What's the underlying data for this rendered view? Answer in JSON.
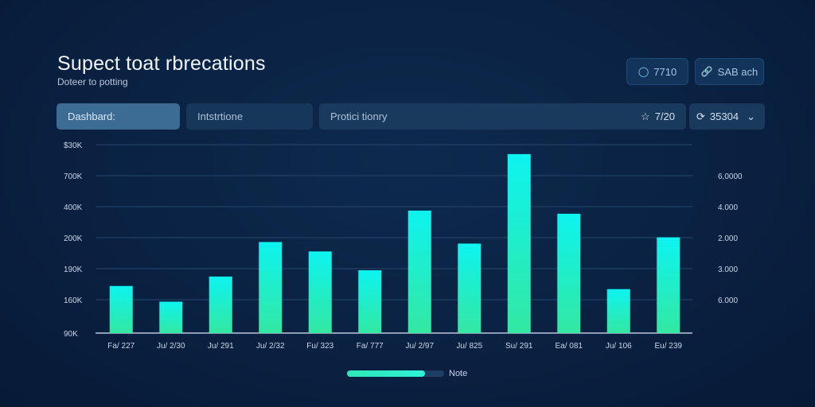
{
  "header": {
    "title": "Supect toat rbrecations",
    "subtitle": "Doteer to potting"
  },
  "top_buttons": [
    {
      "label": "7710",
      "icon": "chat-bubble-icon"
    },
    {
      "label": "SAB ach",
      "icon": "link-icon"
    }
  ],
  "tabs": [
    {
      "label": "Dashbard:",
      "active": true
    },
    {
      "label": "Intstrtione",
      "active": false
    },
    {
      "label": "Protici tionry",
      "active": false
    }
  ],
  "tab_right": {
    "star_value": "7/20",
    "select_value": "35304"
  },
  "legend": {
    "label": "Note",
    "progress": 0.8
  },
  "colors": {
    "bar_low": "#34e7a0",
    "bar_high": "#0df3f0",
    "accent": "#2ef2d8"
  },
  "chart_data": {
    "type": "bar",
    "categories": [
      "Fa/ 227",
      "Ju/ 2/30",
      "Ju/ 291",
      "Ju/ 2/32",
      "Fu/ 323",
      "Fa/ 777",
      "Ju/ 2/97",
      "Ju/ 825",
      "Su/ 291",
      "Ea/ 081",
      "Ju/ 106",
      "Eu/ 239"
    ],
    "values": [
      150,
      100,
      180,
      290,
      260,
      200,
      390,
      285,
      570,
      380,
      140,
      305
    ],
    "y_ticks_left": [
      "$30K",
      "700K",
      "400K",
      "200K",
      "190K",
      "160K",
      "90K"
    ],
    "y_ticks_right": [
      "6,0000",
      "4.000",
      "2.000",
      "3.000",
      "6.000"
    ],
    "ylim": [
      0,
      600
    ],
    "grid": true,
    "legend_position": "bottom-center"
  }
}
